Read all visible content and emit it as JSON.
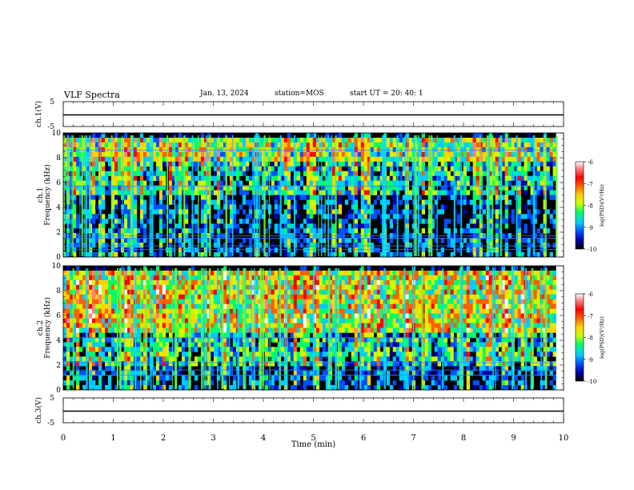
{
  "header": {
    "title": "VLF Spectra",
    "date": "Jan. 13, 2024",
    "station": "station=MOS",
    "start": "start UT =  20: 40: 1"
  },
  "chart_data": [
    {
      "type": "line",
      "panel": "ch1-waveform",
      "ylabel": "ch.1(V)",
      "ylim": [
        -5,
        5
      ],
      "yticks": [
        "5",
        "-5"
      ],
      "x": [
        0,
        10
      ],
      "values": [
        0,
        0
      ]
    },
    {
      "type": "heatmap",
      "panel": "ch1-spectrogram",
      "ylabel": "ch.1\nFrequency (kHz)",
      "ylim": [
        0,
        10
      ],
      "yticks": [
        "0",
        "2",
        "4",
        "6",
        "8",
        "10"
      ],
      "xlim": [
        0,
        10
      ],
      "colorbar": {
        "label": "log(PSD)(V²/Hz)",
        "range": [
          -10,
          -6
        ],
        "ticks": [
          "-6",
          "-7",
          "-8",
          "-9",
          "-10"
        ]
      }
    },
    {
      "type": "heatmap",
      "panel": "ch2-spectrogram",
      "ylabel": "ch.2\nFrequency (kHz)",
      "ylim": [
        0,
        10
      ],
      "yticks": [
        "0",
        "2",
        "4",
        "6",
        "8",
        "10"
      ],
      "xlim": [
        0,
        10
      ],
      "colorbar": {
        "label": "log(PSD)(V²/Hz)",
        "range": [
          -10,
          -6
        ],
        "ticks": [
          "-6",
          "-7",
          "-8",
          "-9",
          "-10"
        ]
      }
    },
    {
      "type": "line",
      "panel": "ch3-waveform",
      "ylabel": "ch.3(V)",
      "ylim": [
        -5,
        5
      ],
      "yticks": [
        "5",
        "-5"
      ],
      "x": [
        0,
        10
      ],
      "values": [
        0,
        0
      ],
      "xlabel": "Time (min)",
      "xticks": [
        "0",
        "1",
        "2",
        "3",
        "4",
        "5",
        "6",
        "7",
        "8",
        "9",
        "10"
      ]
    }
  ],
  "colors": {
    "colormap": [
      "#000000",
      "#0000aa",
      "#0050ff",
      "#00ccff",
      "#00ff66",
      "#ccff00",
      "#ffd200",
      "#ff6000",
      "#ff0000",
      "#ff8080",
      "#ffffff"
    ],
    "axis": "#000000",
    "waveform": "#000000"
  }
}
